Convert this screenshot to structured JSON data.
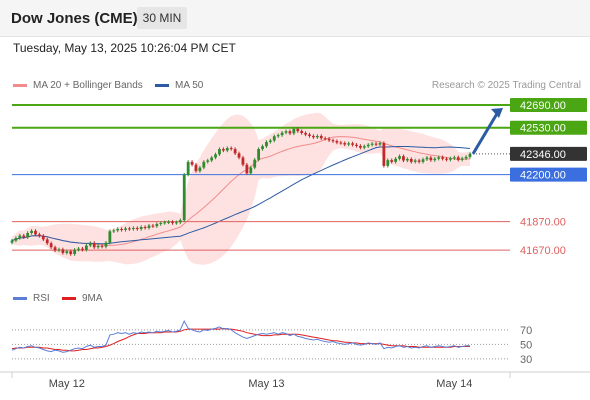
{
  "header": {
    "title": "Dow Jones (CME)",
    "timeframe": "30 MIN"
  },
  "datetime": "Tuesday, May 13, 2025 10:26:04 PM CET",
  "legend": {
    "bollinger": {
      "label": "MA 20 + Bollinger Bands",
      "color": "#f28b8b"
    },
    "ma50": {
      "label": "MA 50",
      "color": "#2c5ba3"
    }
  },
  "credit": "Research © 2025 Trading Central",
  "rsi_legend": {
    "rsi": {
      "label": "RSI",
      "color": "#5b7fd6"
    },
    "ma9": {
      "label": "9MA",
      "color": "#e02020"
    }
  },
  "colors": {
    "up": "#2e8b2e",
    "down": "#c0282a",
    "resistance": "#4aa612",
    "support": "#3b6fe0",
    "target": "#e06060",
    "last": "#333333"
  },
  "chart_data": {
    "type": "candlestick",
    "title": "Dow Jones (CME)",
    "timeframe": "30 MIN",
    "x_tick_labels": [
      "May 12",
      "May 13",
      "May 14"
    ],
    "ylim": [
      41530,
      42760
    ],
    "levels": [
      {
        "value": 42690,
        "label": "42690.00",
        "kind": "resistance"
      },
      {
        "value": 42530,
        "label": "42530.00",
        "kind": "resistance"
      },
      {
        "value": 42346,
        "label": "42346.00",
        "kind": "last"
      },
      {
        "value": 42200,
        "label": "42200.00",
        "kind": "support"
      },
      {
        "value": 41870,
        "label": "41870.00",
        "kind": "target"
      },
      {
        "value": 41670,
        "label": "41670.00",
        "kind": "target"
      }
    ],
    "closes": [
      41737,
      41755,
      41772,
      41760,
      41790,
      41805,
      41780,
      41770,
      41745,
      41718,
      41690,
      41668,
      41675,
      41650,
      41662,
      41642,
      41672,
      41680,
      41672,
      41702,
      41720,
      41690,
      41700,
      41694,
      41722,
      41802,
      41808,
      41818,
      41812,
      41822,
      41818,
      41825,
      41818,
      41832,
      41826,
      41842,
      41838,
      41853,
      41860,
      41865,
      41868,
      41860,
      41865,
      41880,
      42200,
      42290,
      42270,
      42225,
      42250,
      42290,
      42300,
      42320,
      42343,
      42380,
      42370,
      42387,
      42380,
      42350,
      42320,
      42270,
      42210,
      42250,
      42305,
      42380,
      42400,
      42430,
      42440,
      42470,
      42478,
      42495,
      42505,
      42490,
      42522,
      42506,
      42493,
      42482,
      42472,
      42463,
      42472,
      42456,
      42452,
      42442,
      42436,
      42426,
      42422,
      42412,
      42420,
      42410,
      42402,
      42390,
      42400,
      42410,
      42418,
      42412,
      42422,
      42262,
      42302,
      42290,
      42312,
      42330,
      42300,
      42310,
      42290,
      42300,
      42290,
      42308,
      42320,
      42302,
      42312,
      42322,
      42312,
      42305,
      42315,
      42322,
      42305,
      42315,
      42325,
      42346
    ],
    "x_tick_indices": [
      14,
      65,
      113
    ],
    "rsi": {
      "values": [
        42,
        44,
        46,
        45,
        47,
        48,
        46,
        45,
        43,
        41,
        40,
        42,
        41,
        39,
        40,
        42,
        44,
        45,
        44,
        47,
        49,
        46,
        47,
        47,
        49,
        63,
        64,
        66,
        65,
        66,
        64,
        66,
        65,
        67,
        66,
        67,
        66,
        68,
        67,
        68,
        69,
        67,
        68,
        70,
        82,
        72,
        70,
        68,
        67,
        70,
        69,
        71,
        72,
        74,
        71,
        72,
        70,
        66,
        63,
        60,
        58,
        60,
        62,
        64,
        65,
        64,
        65,
        66,
        64,
        66,
        65,
        62,
        64,
        61,
        60,
        58,
        57,
        56,
        57,
        55,
        54,
        53,
        54,
        52,
        51,
        50,
        51,
        52,
        50,
        49,
        50,
        52,
        51,
        50,
        52,
        44,
        46,
        45,
        47,
        48,
        46,
        47,
        45,
        46,
        45,
        47,
        48,
        46,
        47,
        48,
        47,
        46,
        47,
        48,
        46,
        47,
        48,
        48
      ],
      "ma9": [
        44,
        45,
        45,
        45,
        46,
        46,
        46,
        46,
        45,
        45,
        44,
        43,
        43,
        42,
        42,
        41,
        41,
        42,
        43,
        43,
        44,
        45,
        45,
        46,
        47,
        49,
        51,
        54,
        56,
        58,
        61,
        63,
        65,
        65,
        65,
        66,
        66,
        66,
        66,
        67,
        67,
        67,
        67,
        68,
        70,
        71,
        71,
        71,
        71,
        71,
        71,
        71,
        71,
        71,
        72,
        71,
        71,
        70,
        69,
        68,
        66,
        65,
        64,
        63,
        62,
        62,
        62,
        63,
        63,
        64,
        64,
        64,
        64,
        64,
        63,
        62,
        61,
        60,
        59,
        58,
        57,
        56,
        55,
        55,
        54,
        53,
        53,
        52,
        52,
        51,
        51,
        51,
        51,
        51,
        51,
        50,
        49,
        48,
        48,
        48,
        48,
        47,
        47,
        47,
        46,
        46,
        46,
        46,
        46,
        46,
        46,
        46,
        46,
        47,
        47,
        47,
        47,
        47
      ],
      "levels": [
        70,
        50,
        30
      ],
      "ylim": [
        12,
        100
      ]
    }
  }
}
